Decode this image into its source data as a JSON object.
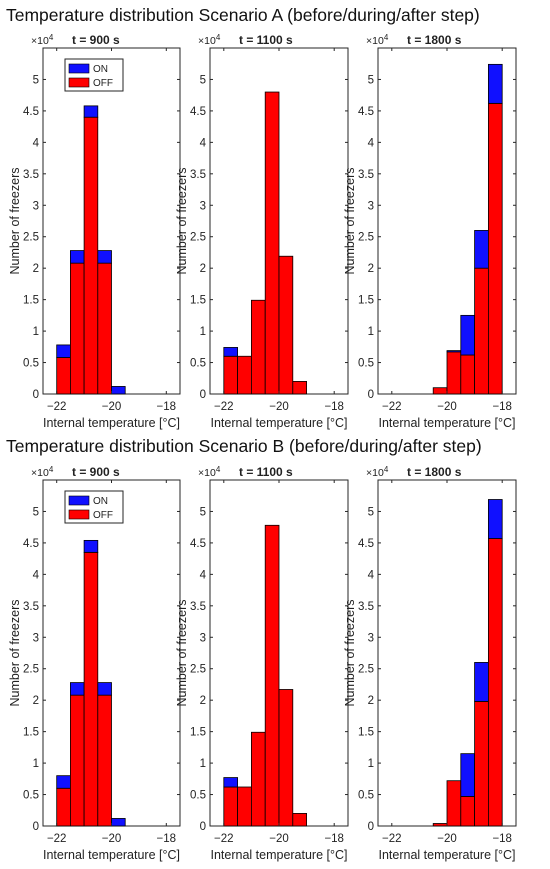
{
  "figure": {
    "x_unit_label": "Internal temperature [°C]",
    "y_label": "Number of freezers",
    "y_multiplier": "×10",
    "y_multiplier_exp": "4",
    "legend": [
      "ON",
      "OFF"
    ],
    "colors": {
      "on": "#1010ff",
      "off": "#ff0000"
    }
  },
  "chart_data": [
    {
      "type": "bar",
      "scenario": "Temperature distribution Scenario A (before/during/after step)",
      "subplots": [
        {
          "title": "t = 900 s",
          "xlim": [
            -22.5,
            -17.5
          ],
          "ylim": [
            0,
            5.5
          ],
          "xticks": [
            -22,
            -20,
            -18
          ],
          "yticks": [
            0,
            0.5,
            1,
            1.5,
            2,
            2.5,
            3,
            3.5,
            4,
            4.5,
            5
          ],
          "legend": true,
          "bin_edges": [
            -22,
            -21.5,
            -21,
            -20.5,
            -20,
            -19.5
          ],
          "off": [
            0.58,
            2.08,
            4.4,
            2.08,
            0
          ],
          "on": [
            0.2,
            0.2,
            0.18,
            0.2,
            0.12
          ]
        },
        {
          "title": "t = 1100 s",
          "xlim": [
            -22.5,
            -17.5
          ],
          "ylim": [
            0,
            5.5
          ],
          "xticks": [
            -22,
            -20,
            -18
          ],
          "yticks": [
            0,
            0.5,
            1,
            1.5,
            2,
            2.5,
            3,
            3.5,
            4,
            4.5,
            5
          ],
          "legend": false,
          "bin_edges": [
            -22,
            -21.5,
            -21,
            -20.5,
            -20,
            -19.5,
            -19
          ],
          "off": [
            0.6,
            0.6,
            1.49,
            4.8,
            2.19,
            0.2
          ],
          "on": [
            0.14,
            0,
            0,
            0,
            0,
            0
          ]
        },
        {
          "title": "t = 1800 s",
          "xlim": [
            -22.5,
            -17.5
          ],
          "ylim": [
            0,
            5.5
          ],
          "xticks": [
            -22,
            -20,
            -18
          ],
          "yticks": [
            0,
            0.5,
            1,
            1.5,
            2,
            2.5,
            3,
            3.5,
            4,
            4.5,
            5
          ],
          "legend": false,
          "bin_edges": [
            -20.5,
            -20,
            -19.5,
            -19,
            -18.5,
            -18
          ],
          "off": [
            0.1,
            0.67,
            0.62,
            2.0,
            4.62
          ],
          "on": [
            0,
            0.02,
            0.63,
            0.6,
            0.62
          ]
        }
      ]
    },
    {
      "type": "bar",
      "scenario": "Temperature distribution Scenario B (before/during/after step)",
      "subplots": [
        {
          "title": "t = 900 s",
          "xlim": [
            -22.5,
            -17.5
          ],
          "ylim": [
            0,
            5.5
          ],
          "xticks": [
            -22,
            -20,
            -18
          ],
          "yticks": [
            0,
            0.5,
            1,
            1.5,
            2,
            2.5,
            3,
            3.5,
            4,
            4.5,
            5
          ],
          "legend": true,
          "bin_edges": [
            -22,
            -21.5,
            -21,
            -20.5,
            -20,
            -19.5
          ],
          "off": [
            0.6,
            2.08,
            4.35,
            2.08,
            0
          ],
          "on": [
            0.2,
            0.2,
            0.19,
            0.2,
            0.12
          ]
        },
        {
          "title": "t = 1100 s",
          "xlim": [
            -22.5,
            -17.5
          ],
          "ylim": [
            0,
            5.5
          ],
          "xticks": [
            -22,
            -20,
            -18
          ],
          "yticks": [
            0,
            0.5,
            1,
            1.5,
            2,
            2.5,
            3,
            3.5,
            4,
            4.5,
            5
          ],
          "legend": false,
          "bin_edges": [
            -22,
            -21.5,
            -21,
            -20.5,
            -20,
            -19.5,
            -19
          ],
          "off": [
            0.62,
            0.62,
            1.49,
            4.78,
            2.17,
            0.2
          ],
          "on": [
            0.15,
            0,
            0,
            0,
            0,
            0
          ]
        },
        {
          "title": "t = 1800 s",
          "xlim": [
            -22.5,
            -17.5
          ],
          "ylim": [
            0,
            5.5
          ],
          "xticks": [
            -22,
            -20,
            -18
          ],
          "yticks": [
            0,
            0.5,
            1,
            1.5,
            2,
            2.5,
            3,
            3.5,
            4,
            4.5,
            5
          ],
          "legend": false,
          "bin_edges": [
            -20.5,
            -20,
            -19.5,
            -19,
            -18.5,
            -18
          ],
          "off": [
            0.04,
            0.72,
            0.47,
            1.98,
            4.57
          ],
          "on": [
            0,
            0,
            0.68,
            0.62,
            0.62
          ]
        }
      ]
    }
  ]
}
